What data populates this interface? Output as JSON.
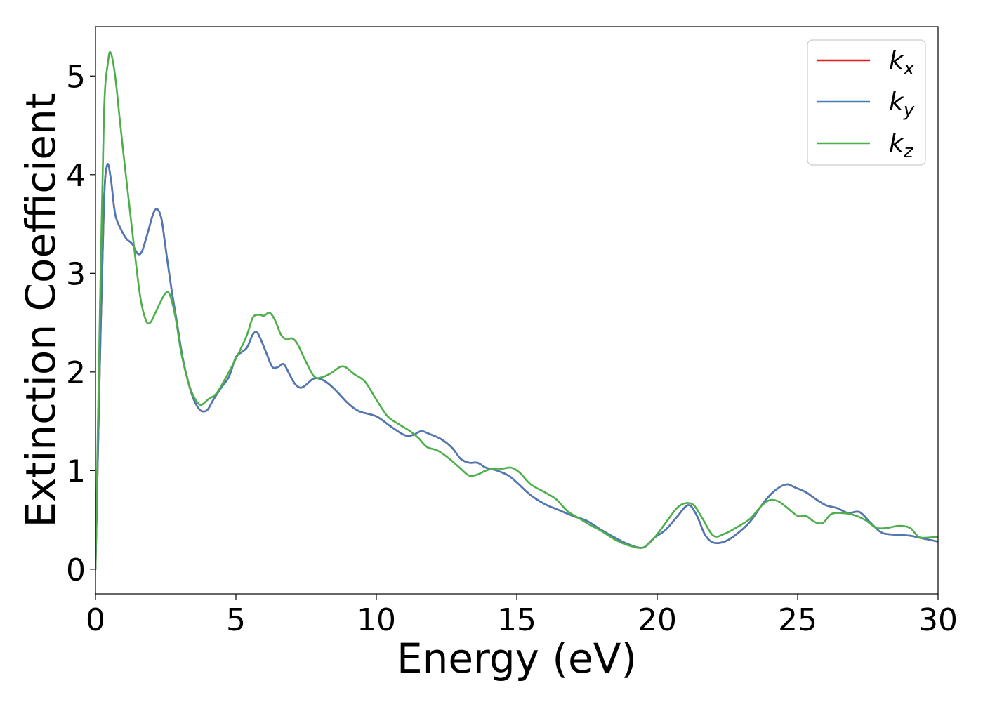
{
  "chart_data": {
    "type": "line",
    "title": "",
    "xlabel": "Energy (eV)",
    "ylabel": "Extinction Coefficient",
    "xlim": [
      0,
      30
    ],
    "ylim": [
      -0.25,
      5.5
    ],
    "xticks": [
      0,
      5,
      10,
      15,
      20,
      25,
      30
    ],
    "yticks": [
      0,
      1,
      2,
      3,
      4,
      5
    ],
    "grid": false,
    "legend_position": "top-right",
    "series": [
      {
        "name": "k",
        "subscript": "x",
        "color": "#e41a1c",
        "points": [
          [
            0,
            0
          ],
          [
            0.15,
            2.0
          ],
          [
            0.3,
            3.7
          ],
          [
            0.42,
            4.1
          ],
          [
            0.55,
            3.95
          ],
          [
            0.7,
            3.6
          ],
          [
            0.9,
            3.45
          ],
          [
            1.1,
            3.35
          ],
          [
            1.3,
            3.3
          ],
          [
            1.5,
            3.2
          ],
          [
            1.65,
            3.22
          ],
          [
            1.85,
            3.4
          ],
          [
            2.05,
            3.6
          ],
          [
            2.2,
            3.65
          ],
          [
            2.35,
            3.55
          ],
          [
            2.5,
            3.25
          ],
          [
            2.7,
            2.85
          ],
          [
            2.9,
            2.5
          ],
          [
            3.1,
            2.15
          ],
          [
            3.3,
            1.9
          ],
          [
            3.5,
            1.72
          ],
          [
            3.7,
            1.62
          ],
          [
            3.85,
            1.6
          ],
          [
            4.0,
            1.62
          ],
          [
            4.2,
            1.72
          ],
          [
            4.5,
            1.85
          ],
          [
            4.75,
            1.95
          ],
          [
            5.0,
            2.15
          ],
          [
            5.2,
            2.2
          ],
          [
            5.4,
            2.25
          ],
          [
            5.6,
            2.38
          ],
          [
            5.75,
            2.4
          ],
          [
            5.9,
            2.32
          ],
          [
            6.1,
            2.18
          ],
          [
            6.3,
            2.05
          ],
          [
            6.5,
            2.05
          ],
          [
            6.7,
            2.08
          ],
          [
            6.9,
            1.98
          ],
          [
            7.1,
            1.88
          ],
          [
            7.3,
            1.84
          ],
          [
            7.5,
            1.87
          ],
          [
            7.75,
            1.93
          ],
          [
            8.0,
            1.93
          ],
          [
            8.3,
            1.88
          ],
          [
            8.6,
            1.8
          ],
          [
            9.0,
            1.68
          ],
          [
            9.4,
            1.6
          ],
          [
            10.0,
            1.55
          ],
          [
            10.5,
            1.45
          ],
          [
            11.0,
            1.36
          ],
          [
            11.3,
            1.36
          ],
          [
            11.6,
            1.4
          ],
          [
            11.9,
            1.37
          ],
          [
            12.3,
            1.32
          ],
          [
            12.7,
            1.23
          ],
          [
            13.0,
            1.12
          ],
          [
            13.3,
            1.08
          ],
          [
            13.6,
            1.08
          ],
          [
            13.9,
            1.03
          ],
          [
            14.3,
            1.0
          ],
          [
            14.7,
            0.95
          ],
          [
            15.0,
            0.88
          ],
          [
            15.5,
            0.75
          ],
          [
            16.0,
            0.66
          ],
          [
            16.5,
            0.6
          ],
          [
            17.0,
            0.54
          ],
          [
            17.5,
            0.49
          ],
          [
            18.0,
            0.4
          ],
          [
            18.5,
            0.32
          ],
          [
            19.0,
            0.25
          ],
          [
            19.5,
            0.22
          ],
          [
            19.9,
            0.32
          ],
          [
            20.3,
            0.4
          ],
          [
            20.7,
            0.53
          ],
          [
            21.1,
            0.65
          ],
          [
            21.4,
            0.55
          ],
          [
            21.7,
            0.35
          ],
          [
            22.0,
            0.27
          ],
          [
            22.4,
            0.28
          ],
          [
            22.8,
            0.35
          ],
          [
            23.3,
            0.48
          ],
          [
            23.8,
            0.68
          ],
          [
            24.2,
            0.8
          ],
          [
            24.6,
            0.86
          ],
          [
            24.9,
            0.83
          ],
          [
            25.3,
            0.78
          ],
          [
            25.6,
            0.72
          ],
          [
            26.0,
            0.65
          ],
          [
            26.4,
            0.62
          ],
          [
            26.8,
            0.57
          ],
          [
            27.2,
            0.58
          ],
          [
            27.6,
            0.47
          ],
          [
            28.0,
            0.37
          ],
          [
            28.5,
            0.35
          ],
          [
            29.0,
            0.34
          ],
          [
            29.5,
            0.31
          ],
          [
            30.0,
            0.28
          ]
        ]
      },
      {
        "name": "k",
        "subscript": "y",
        "color": "#4a7bb7",
        "points": [
          [
            0,
            0
          ],
          [
            0.15,
            2.0
          ],
          [
            0.3,
            3.7
          ],
          [
            0.42,
            4.1
          ],
          [
            0.55,
            3.95
          ],
          [
            0.7,
            3.6
          ],
          [
            0.9,
            3.45
          ],
          [
            1.1,
            3.35
          ],
          [
            1.3,
            3.3
          ],
          [
            1.5,
            3.2
          ],
          [
            1.65,
            3.22
          ],
          [
            1.85,
            3.4
          ],
          [
            2.05,
            3.6
          ],
          [
            2.2,
            3.65
          ],
          [
            2.35,
            3.55
          ],
          [
            2.5,
            3.25
          ],
          [
            2.7,
            2.85
          ],
          [
            2.9,
            2.5
          ],
          [
            3.1,
            2.15
          ],
          [
            3.3,
            1.9
          ],
          [
            3.5,
            1.72
          ],
          [
            3.7,
            1.62
          ],
          [
            3.85,
            1.6
          ],
          [
            4.0,
            1.62
          ],
          [
            4.2,
            1.72
          ],
          [
            4.5,
            1.85
          ],
          [
            4.75,
            1.95
          ],
          [
            5.0,
            2.15
          ],
          [
            5.2,
            2.2
          ],
          [
            5.4,
            2.25
          ],
          [
            5.6,
            2.38
          ],
          [
            5.75,
            2.4
          ],
          [
            5.9,
            2.32
          ],
          [
            6.1,
            2.18
          ],
          [
            6.3,
            2.05
          ],
          [
            6.5,
            2.05
          ],
          [
            6.7,
            2.08
          ],
          [
            6.9,
            1.98
          ],
          [
            7.1,
            1.88
          ],
          [
            7.3,
            1.84
          ],
          [
            7.5,
            1.87
          ],
          [
            7.75,
            1.93
          ],
          [
            8.0,
            1.93
          ],
          [
            8.3,
            1.88
          ],
          [
            8.6,
            1.8
          ],
          [
            9.0,
            1.68
          ],
          [
            9.4,
            1.6
          ],
          [
            10.0,
            1.55
          ],
          [
            10.5,
            1.45
          ],
          [
            11.0,
            1.36
          ],
          [
            11.3,
            1.36
          ],
          [
            11.6,
            1.4
          ],
          [
            11.9,
            1.37
          ],
          [
            12.3,
            1.32
          ],
          [
            12.7,
            1.23
          ],
          [
            13.0,
            1.12
          ],
          [
            13.3,
            1.08
          ],
          [
            13.6,
            1.08
          ],
          [
            13.9,
            1.03
          ],
          [
            14.3,
            1.0
          ],
          [
            14.7,
            0.95
          ],
          [
            15.0,
            0.88
          ],
          [
            15.5,
            0.75
          ],
          [
            16.0,
            0.66
          ],
          [
            16.5,
            0.6
          ],
          [
            17.0,
            0.54
          ],
          [
            17.5,
            0.49
          ],
          [
            18.0,
            0.4
          ],
          [
            18.5,
            0.32
          ],
          [
            19.0,
            0.25
          ],
          [
            19.5,
            0.22
          ],
          [
            19.9,
            0.32
          ],
          [
            20.3,
            0.4
          ],
          [
            20.7,
            0.53
          ],
          [
            21.1,
            0.65
          ],
          [
            21.4,
            0.55
          ],
          [
            21.7,
            0.35
          ],
          [
            22.0,
            0.27
          ],
          [
            22.4,
            0.28
          ],
          [
            22.8,
            0.35
          ],
          [
            23.3,
            0.48
          ],
          [
            23.8,
            0.68
          ],
          [
            24.2,
            0.8
          ],
          [
            24.6,
            0.86
          ],
          [
            24.9,
            0.83
          ],
          [
            25.3,
            0.78
          ],
          [
            25.6,
            0.72
          ],
          [
            26.0,
            0.65
          ],
          [
            26.4,
            0.62
          ],
          [
            26.8,
            0.57
          ],
          [
            27.2,
            0.58
          ],
          [
            27.6,
            0.47
          ],
          [
            28.0,
            0.37
          ],
          [
            28.5,
            0.35
          ],
          [
            29.0,
            0.34
          ],
          [
            29.5,
            0.31
          ],
          [
            30.0,
            0.28
          ]
        ]
      },
      {
        "name": "k",
        "subscript": "z",
        "color": "#4daf4a",
        "points": [
          [
            0,
            0
          ],
          [
            0.15,
            2.5
          ],
          [
            0.3,
            4.6
          ],
          [
            0.45,
            5.15
          ],
          [
            0.55,
            5.23
          ],
          [
            0.7,
            5.0
          ],
          [
            0.85,
            4.6
          ],
          [
            1.0,
            4.2
          ],
          [
            1.2,
            3.7
          ],
          [
            1.4,
            3.2
          ],
          [
            1.6,
            2.75
          ],
          [
            1.8,
            2.52
          ],
          [
            1.95,
            2.5
          ],
          [
            2.1,
            2.58
          ],
          [
            2.3,
            2.7
          ],
          [
            2.5,
            2.8
          ],
          [
            2.65,
            2.78
          ],
          [
            2.85,
            2.55
          ],
          [
            3.05,
            2.2
          ],
          [
            3.3,
            1.9
          ],
          [
            3.5,
            1.75
          ],
          [
            3.7,
            1.67
          ],
          [
            3.85,
            1.68
          ],
          [
            4.0,
            1.72
          ],
          [
            4.3,
            1.78
          ],
          [
            4.6,
            1.92
          ],
          [
            4.9,
            2.08
          ],
          [
            5.2,
            2.25
          ],
          [
            5.4,
            2.38
          ],
          [
            5.6,
            2.55
          ],
          [
            5.8,
            2.58
          ],
          [
            6.0,
            2.57
          ],
          [
            6.2,
            2.6
          ],
          [
            6.4,
            2.52
          ],
          [
            6.6,
            2.38
          ],
          [
            6.8,
            2.33
          ],
          [
            7.0,
            2.34
          ],
          [
            7.2,
            2.28
          ],
          [
            7.5,
            2.1
          ],
          [
            7.8,
            1.95
          ],
          [
            8.1,
            1.95
          ],
          [
            8.4,
            1.99
          ],
          [
            8.7,
            2.05
          ],
          [
            8.9,
            2.05
          ],
          [
            9.2,
            1.98
          ],
          [
            9.6,
            1.9
          ],
          [
            10.0,
            1.72
          ],
          [
            10.4,
            1.55
          ],
          [
            10.8,
            1.47
          ],
          [
            11.2,
            1.4
          ],
          [
            11.5,
            1.33
          ],
          [
            11.8,
            1.24
          ],
          [
            12.2,
            1.2
          ],
          [
            12.6,
            1.12
          ],
          [
            13.0,
            1.02
          ],
          [
            13.3,
            0.95
          ],
          [
            13.6,
            0.96
          ],
          [
            13.9,
            1.0
          ],
          [
            14.2,
            1.02
          ],
          [
            14.5,
            1.02
          ],
          [
            14.8,
            1.03
          ],
          [
            15.1,
            0.98
          ],
          [
            15.5,
            0.86
          ],
          [
            16.0,
            0.78
          ],
          [
            16.4,
            0.71
          ],
          [
            16.8,
            0.59
          ],
          [
            17.2,
            0.52
          ],
          [
            17.6,
            0.45
          ],
          [
            18.0,
            0.39
          ],
          [
            18.5,
            0.3
          ],
          [
            19.0,
            0.24
          ],
          [
            19.5,
            0.22
          ],
          [
            19.9,
            0.32
          ],
          [
            20.3,
            0.47
          ],
          [
            20.7,
            0.62
          ],
          [
            21.0,
            0.67
          ],
          [
            21.3,
            0.65
          ],
          [
            21.6,
            0.52
          ],
          [
            22.0,
            0.34
          ],
          [
            22.4,
            0.36
          ],
          [
            22.8,
            0.42
          ],
          [
            23.3,
            0.51
          ],
          [
            23.7,
            0.64
          ],
          [
            24.0,
            0.7
          ],
          [
            24.3,
            0.69
          ],
          [
            24.6,
            0.63
          ],
          [
            25.0,
            0.54
          ],
          [
            25.3,
            0.54
          ],
          [
            25.6,
            0.48
          ],
          [
            25.9,
            0.47
          ],
          [
            26.2,
            0.56
          ],
          [
            26.6,
            0.57
          ],
          [
            27.0,
            0.55
          ],
          [
            27.4,
            0.5
          ],
          [
            27.8,
            0.42
          ],
          [
            28.2,
            0.42
          ],
          [
            28.6,
            0.44
          ],
          [
            29.0,
            0.42
          ],
          [
            29.3,
            0.33
          ],
          [
            29.6,
            0.32
          ],
          [
            30.0,
            0.33
          ]
        ]
      }
    ]
  }
}
